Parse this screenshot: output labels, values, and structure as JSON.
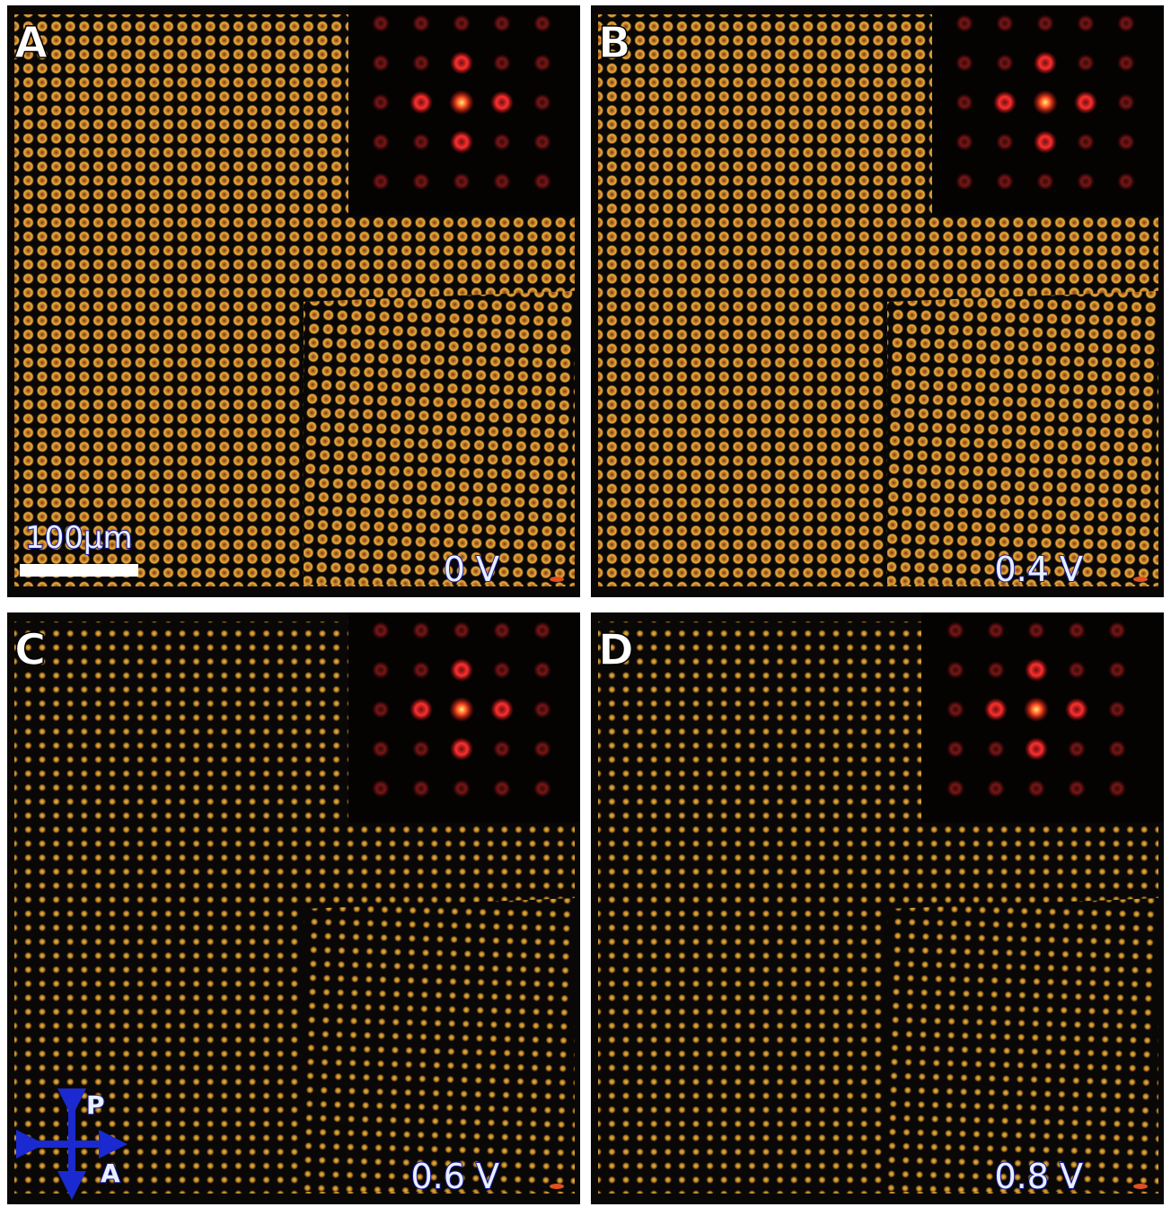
{
  "panels": [
    {
      "label": "A",
      "voltage": "0 V"
    },
    {
      "label": "B",
      "voltage": "0.4 V"
    },
    {
      "label": "C",
      "voltage": "0.6 V"
    },
    {
      "label": "D",
      "voltage": "0.8 V"
    }
  ],
  "scale_bar": "100µm",
  "polarizer": {
    "p": "P",
    "a": "A"
  }
}
